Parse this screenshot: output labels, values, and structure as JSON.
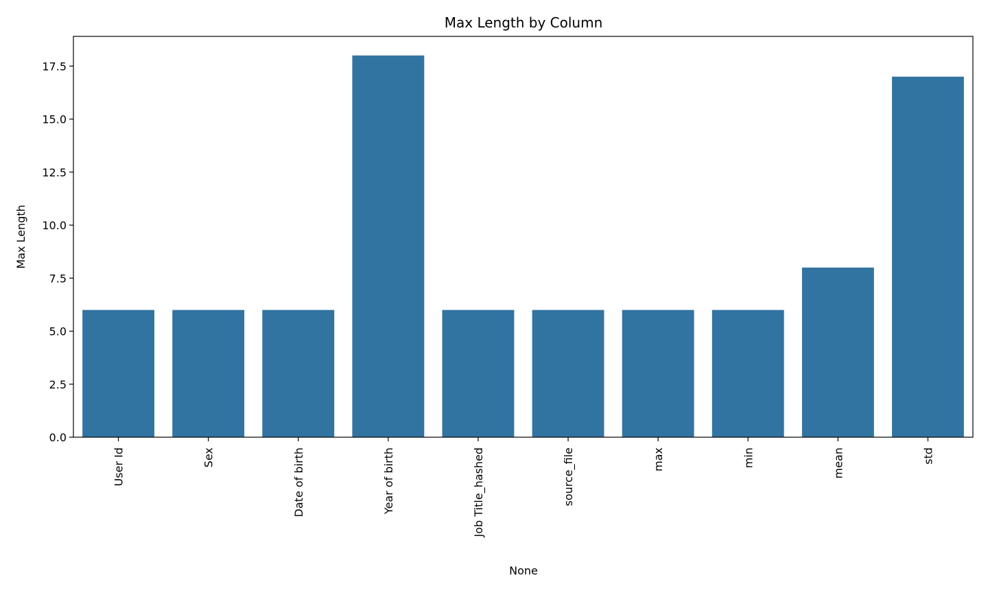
{
  "chart_data": {
    "type": "bar",
    "title": "Max Length by Column",
    "xlabel": "None",
    "ylabel": "Max Length",
    "categories": [
      "User Id",
      "Sex",
      "Date of birth",
      "Year of birth",
      "Job Title_hashed",
      "source_file",
      "max",
      "min",
      "mean",
      "std"
    ],
    "values": [
      6,
      6,
      6,
      18,
      6,
      6,
      6,
      6,
      8,
      17
    ],
    "ylim": [
      0,
      18.9
    ],
    "yticks": [
      "0.0",
      "2.5",
      "5.0",
      "7.5",
      "10.0",
      "12.5",
      "15.0",
      "17.5"
    ],
    "bar_color": "#3274a1",
    "grid": false,
    "legend": "none"
  }
}
